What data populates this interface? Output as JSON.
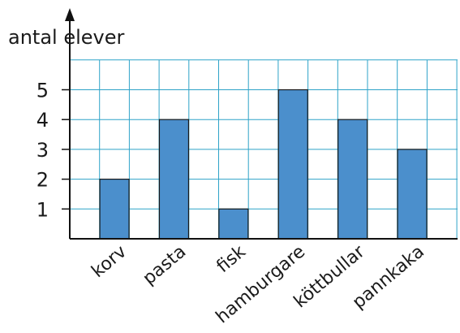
{
  "chart_data": {
    "type": "bar",
    "ylabel": "antal elever",
    "xlabel": "",
    "categories": [
      "korv",
      "pasta",
      "fisk",
      "hamburgare",
      "köttbullar",
      "pannkaka"
    ],
    "values": [
      2,
      4,
      1,
      5,
      4,
      3
    ],
    "yticks": [
      1,
      2,
      3,
      4,
      5
    ],
    "ylim": [
      0,
      6
    ],
    "grid": true,
    "bar_color": "#4b8fcc",
    "grid_color": "#2ea3c8",
    "axis_color": "#111111"
  }
}
